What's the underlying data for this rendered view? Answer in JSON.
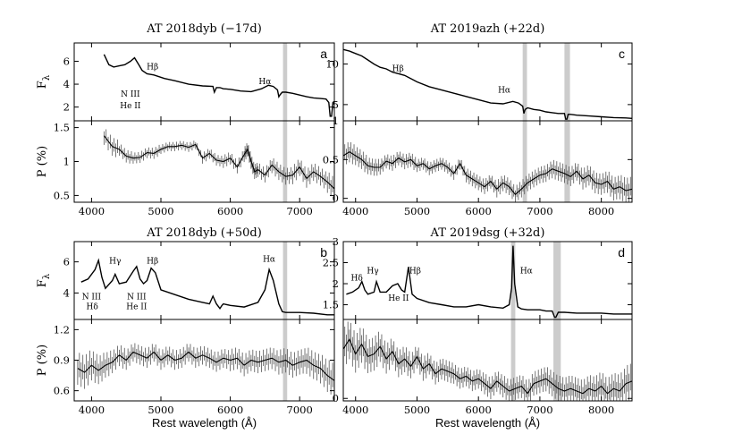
{
  "figure": {
    "x_label": "Rest wavelength (Å)"
  },
  "chart_data": [
    {
      "id": "a",
      "type": "line",
      "title": "AT 2018dyb   (−17d)",
      "letter": "a",
      "xlim": [
        3750,
        7500
      ],
      "xticks": [
        4000,
        5000,
        6000,
        7000
      ],
      "flux": {
        "ylabel": "F_λ",
        "ylim": [
          0.8,
          7.6
        ],
        "yticks": [
          2,
          4,
          6
        ],
        "x": [
          4180,
          4250,
          4320,
          4400,
          4480,
          4560,
          4620,
          4680,
          4730,
          4800,
          4900,
          5050,
          5200,
          5400,
          5600,
          5750,
          5770,
          5800,
          5850,
          5900,
          6000,
          6150,
          6300,
          6450,
          6550,
          6620,
          6680,
          6700,
          6720,
          6750,
          6800,
          6900,
          7000,
          7100,
          7200,
          7300,
          7380,
          7420,
          7440,
          7460,
          7480,
          7500
        ],
        "y": [
          6.6,
          5.7,
          5.5,
          5.6,
          5.7,
          6.0,
          6.3,
          5.7,
          5.2,
          4.9,
          4.8,
          4.5,
          4.3,
          4.0,
          3.85,
          3.8,
          3.3,
          3.7,
          3.7,
          3.6,
          3.55,
          3.4,
          3.35,
          3.6,
          3.9,
          3.8,
          3.5,
          2.9,
          3.1,
          3.3,
          3.3,
          3.2,
          3.05,
          2.9,
          2.8,
          2.75,
          2.7,
          2.4,
          1.2,
          1.2,
          2.4,
          2.5
        ],
        "annotations": [
          {
            "text": "Hβ",
            "x": 4880,
            "y": 5.3
          },
          {
            "text": "N III",
            "x": 4560,
            "y": 2.9
          },
          {
            "text": "He II",
            "x": 4560,
            "y": 1.9
          },
          {
            "text": "Hα",
            "x": 6500,
            "y": 4.0
          }
        ]
      },
      "polarization": {
        "ylabel": "P (%)",
        "ylim": [
          0.4,
          1.6
        ],
        "yticks": [
          0.5,
          1.0,
          1.5
        ],
        "x": [
          4180,
          4300,
          4400,
          4500,
          4600,
          4700,
          4800,
          4900,
          5000,
          5100,
          5200,
          5300,
          5400,
          5500,
          5600,
          5700,
          5800,
          5900,
          6000,
          6100,
          6200,
          6250,
          6300,
          6350,
          6400,
          6500,
          6600,
          6700,
          6800,
          6900,
          7000,
          7100,
          7200,
          7300,
          7400,
          7500
        ],
        "y": [
          1.38,
          1.22,
          1.18,
          1.08,
          1.05,
          1.06,
          1.13,
          1.12,
          1.18,
          1.22,
          1.22,
          1.24,
          1.21,
          1.25,
          1.05,
          1.12,
          1.02,
          1.0,
          1.05,
          0.92,
          1.1,
          1.18,
          1.0,
          0.85,
          0.88,
          0.8,
          0.95,
          0.85,
          0.78,
          0.8,
          0.92,
          0.75,
          0.85,
          0.78,
          0.7,
          0.6
        ],
        "err": [
          0.1,
          0.1,
          0.07,
          0.07,
          0.06,
          0.06,
          0.06,
          0.06,
          0.05,
          0.05,
          0.05,
          0.05,
          0.05,
          0.05,
          0.06,
          0.06,
          0.06,
          0.07,
          0.07,
          0.07,
          0.08,
          0.08,
          0.08,
          0.08,
          0.08,
          0.08,
          0.09,
          0.09,
          0.09,
          0.1,
          0.1,
          0.1,
          0.1,
          0.1,
          0.12,
          0.14
        ]
      },
      "band": [
        6760,
        6820
      ]
    },
    {
      "id": "c",
      "type": "line",
      "title": "AT 2019azh   (+22d)",
      "letter": "c",
      "xlim": [
        3800,
        8500
      ],
      "xticks": [
        4000,
        5000,
        6000,
        7000,
        8000
      ],
      "flux": {
        "ylabel": "",
        "ylim": [
          3.0,
          12.6
        ],
        "yticks": [
          5,
          10
        ],
        "x": [
          3800,
          3900,
          4000,
          4100,
          4200,
          4300,
          4400,
          4500,
          4600,
          4700,
          4800,
          4900,
          5000,
          5200,
          5400,
          5600,
          5800,
          6000,
          6200,
          6400,
          6560,
          6650,
          6720,
          6740,
          6760,
          6800,
          6900,
          7000,
          7100,
          7200,
          7300,
          7400,
          7420,
          7440,
          7460,
          7500,
          7600,
          7800,
          8000,
          8200,
          8400,
          8500
        ],
        "y": [
          11.8,
          11.6,
          11.3,
          11.0,
          10.5,
          10.0,
          9.6,
          9.4,
          9.0,
          8.8,
          8.6,
          8.2,
          7.8,
          7.2,
          6.8,
          6.4,
          6.0,
          5.6,
          5.2,
          5.1,
          5.4,
          5.2,
          4.8,
          3.9,
          4.4,
          4.6,
          4.4,
          4.3,
          4.1,
          4.0,
          3.9,
          3.9,
          3.2,
          3.2,
          3.8,
          3.8,
          3.7,
          3.6,
          3.5,
          3.4,
          3.35,
          3.3
        ],
        "annotations": [
          {
            "text": "Hβ",
            "x": 4690,
            "y": 9.1
          },
          {
            "text": "Hα",
            "x": 6420,
            "y": 6.5
          }
        ]
      },
      "polarization": {
        "ylabel": "",
        "ylim": [
          -0.05,
          1.0
        ],
        "yticks": [
          0.0,
          0.5,
          1.0
        ],
        "x": [
          3800,
          3900,
          4000,
          4100,
          4200,
          4300,
          4400,
          4500,
          4600,
          4700,
          4800,
          4900,
          5000,
          5100,
          5200,
          5300,
          5400,
          5500,
          5600,
          5700,
          5800,
          5900,
          6000,
          6100,
          6200,
          6300,
          6400,
          6500,
          6600,
          6700,
          6800,
          6900,
          7000,
          7100,
          7200,
          7300,
          7400,
          7500,
          7600,
          7700,
          7800,
          7900,
          8000,
          8100,
          8200,
          8300,
          8400,
          8500
        ],
        "y": [
          0.55,
          0.6,
          0.55,
          0.5,
          0.42,
          0.4,
          0.4,
          0.48,
          0.45,
          0.52,
          0.47,
          0.5,
          0.42,
          0.45,
          0.38,
          0.42,
          0.45,
          0.4,
          0.32,
          0.45,
          0.3,
          0.25,
          0.2,
          0.15,
          0.22,
          0.12,
          0.2,
          0.15,
          0.05,
          0.12,
          0.2,
          0.25,
          0.3,
          0.32,
          0.38,
          0.35,
          0.32,
          0.28,
          0.35,
          0.25,
          0.3,
          0.2,
          0.18,
          0.22,
          0.12,
          0.15,
          0.1,
          0.12
        ],
        "err": [
          0.1,
          0.1,
          0.09,
          0.09,
          0.08,
          0.08,
          0.07,
          0.07,
          0.07,
          0.07,
          0.07,
          0.07,
          0.06,
          0.06,
          0.06,
          0.06,
          0.06,
          0.06,
          0.06,
          0.06,
          0.07,
          0.07,
          0.07,
          0.07,
          0.07,
          0.08,
          0.08,
          0.08,
          0.08,
          0.08,
          0.08,
          0.08,
          0.08,
          0.08,
          0.09,
          0.09,
          0.09,
          0.09,
          0.09,
          0.1,
          0.1,
          0.1,
          0.1,
          0.11,
          0.11,
          0.12,
          0.12,
          0.13
        ]
      },
      "band": [
        6720,
        6790
      ],
      "band2": [
        7400,
        7490
      ]
    },
    {
      "id": "b",
      "type": "line",
      "title": "AT 2018dyb   (+50d)",
      "letter": "b",
      "xlim": [
        3750,
        7500
      ],
      "xticks": [
        4000,
        5000,
        6000,
        7000
      ],
      "flux": {
        "ylabel": "F_λ",
        "ylim": [
          2.3,
          7.3
        ],
        "yticks": [
          4,
          6
        ],
        "x": [
          3850,
          3950,
          4050,
          4100,
          4150,
          4200,
          4300,
          4340,
          4400,
          4500,
          4600,
          4650,
          4700,
          4750,
          4800,
          4860,
          4920,
          5000,
          5200,
          5400,
          5600,
          5700,
          5750,
          5800,
          5850,
          5880,
          5900,
          6000,
          6200,
          6400,
          6500,
          6560,
          6620,
          6700,
          6750,
          6800,
          7000,
          7200,
          7400,
          7500
        ],
        "y": [
          4.7,
          4.9,
          5.5,
          6.1,
          5.0,
          4.3,
          4.8,
          5.2,
          4.6,
          4.7,
          5.4,
          5.7,
          4.9,
          4.6,
          4.8,
          5.6,
          5.3,
          4.2,
          3.9,
          3.6,
          3.4,
          3.3,
          3.8,
          3.3,
          3.0,
          3.2,
          3.3,
          3.2,
          3.1,
          3.4,
          4.2,
          5.5,
          4.8,
          3.3,
          2.8,
          2.75,
          2.75,
          2.7,
          2.6,
          2.6
        ],
        "annotations": [
          {
            "text": "Hγ",
            "x": 4340,
            "y": 5.9
          },
          {
            "text": "Hβ",
            "x": 4880,
            "y": 5.9
          },
          {
            "text": "Hα",
            "x": 6560,
            "y": 6.0
          },
          {
            "text": "N III",
            "x": 4000,
            "y": 3.6
          },
          {
            "text": "Hδ",
            "x": 4010,
            "y": 2.95
          },
          {
            "text": "N III",
            "x": 4650,
            "y": 3.6
          },
          {
            "text": "He II",
            "x": 4650,
            "y": 2.95
          }
        ]
      },
      "polarization": {
        "ylabel": "P (%)",
        "ylim": [
          0.5,
          1.3
        ],
        "yticks": [
          0.6,
          0.9,
          1.2
        ],
        "x": [
          3800,
          3900,
          4000,
          4100,
          4200,
          4300,
          4400,
          4500,
          4600,
          4700,
          4800,
          4900,
          5000,
          5100,
          5200,
          5300,
          5400,
          5500,
          5600,
          5700,
          5800,
          5900,
          6000,
          6100,
          6200,
          6300,
          6400,
          6500,
          6600,
          6700,
          6800,
          6900,
          7000,
          7100,
          7200,
          7300,
          7400,
          7500
        ],
        "y": [
          0.82,
          0.78,
          0.85,
          0.8,
          0.85,
          0.88,
          0.95,
          0.9,
          0.98,
          0.95,
          0.92,
          0.98,
          0.9,
          0.95,
          0.9,
          0.92,
          0.98,
          0.92,
          0.95,
          0.92,
          0.88,
          0.92,
          0.9,
          0.92,
          0.85,
          0.9,
          0.88,
          0.9,
          0.92,
          0.88,
          0.9,
          0.85,
          0.88,
          0.9,
          0.85,
          0.82,
          0.75,
          0.7
        ],
        "err": [
          0.12,
          0.12,
          0.11,
          0.1,
          0.09,
          0.08,
          0.08,
          0.07,
          0.07,
          0.07,
          0.07,
          0.07,
          0.07,
          0.07,
          0.07,
          0.07,
          0.07,
          0.07,
          0.07,
          0.07,
          0.07,
          0.07,
          0.08,
          0.08,
          0.08,
          0.08,
          0.08,
          0.08,
          0.08,
          0.09,
          0.09,
          0.09,
          0.09,
          0.1,
          0.1,
          0.11,
          0.12,
          0.13
        ]
      },
      "band": [
        6760,
        6820
      ]
    },
    {
      "id": "d",
      "type": "line",
      "title": "AT 2019dsg   (+32d)",
      "letter": "d",
      "xlim": [
        3800,
        8500
      ],
      "xticks": [
        4000,
        5000,
        6000,
        7000,
        8000
      ],
      "flux": {
        "ylabel": "",
        "ylim": [
          1.15,
          3.0
        ],
        "yticks": [
          1.5,
          2.0,
          2.5,
          3.0
        ],
        "x": [
          3850,
          3950,
          4000,
          4050,
          4102,
          4150,
          4200,
          4300,
          4340,
          4400,
          4500,
          4600,
          4686,
          4750,
          4800,
          4861,
          4920,
          5000,
          5200,
          5400,
          5600,
          5800,
          6000,
          6200,
          6400,
          6500,
          6540,
          6563,
          6590,
          6640,
          6700,
          6800,
          7000,
          7100,
          7200,
          7240,
          7260,
          7300,
          7400,
          7600,
          7800,
          8000,
          8200,
          8400,
          8500
        ],
        "y": [
          1.75,
          1.8,
          1.85,
          1.9,
          2.05,
          1.85,
          1.75,
          1.8,
          2.05,
          1.8,
          1.8,
          1.95,
          2.0,
          1.85,
          1.8,
          2.4,
          1.75,
          1.65,
          1.55,
          1.5,
          1.45,
          1.45,
          1.5,
          1.45,
          1.42,
          1.5,
          1.9,
          2.9,
          2.0,
          1.45,
          1.4,
          1.38,
          1.38,
          1.35,
          1.35,
          1.2,
          1.2,
          1.32,
          1.32,
          1.3,
          1.3,
          1.3,
          1.28,
          1.28,
          1.28
        ],
        "annotations": [
          {
            "text": "Hδ",
            "x": 4020,
            "y": 2.08
          },
          {
            "text": "Hγ",
            "x": 4280,
            "y": 2.25
          },
          {
            "text": "Hβ",
            "x": 4970,
            "y": 2.25
          },
          {
            "text": "He II",
            "x": 4700,
            "y": 1.6
          },
          {
            "text": "Hα",
            "x": 6780,
            "y": 2.25
          }
        ]
      },
      "polarization": {
        "ylabel": "",
        "ylim": [
          -0.05,
          1.6
        ],
        "yticks": [
          0.0
        ],
        "x": [
          3800,
          3900,
          4000,
          4100,
          4200,
          4300,
          4400,
          4500,
          4600,
          4700,
          4800,
          4900,
          5000,
          5100,
          5200,
          5300,
          5400,
          5500,
          5600,
          5700,
          5800,
          5900,
          6000,
          6100,
          6200,
          6300,
          6400,
          6500,
          6600,
          6700,
          6800,
          6900,
          7000,
          7100,
          7200,
          7300,
          7400,
          7500,
          7600,
          7700,
          7800,
          7900,
          8000,
          8100,
          8200,
          8300,
          8400,
          8500
        ],
        "y": [
          1.0,
          1.2,
          0.9,
          1.1,
          0.85,
          0.9,
          1.05,
          0.8,
          0.95,
          0.7,
          0.8,
          0.65,
          0.85,
          0.6,
          0.7,
          0.5,
          0.6,
          0.55,
          0.5,
          0.4,
          0.45,
          0.35,
          0.4,
          0.3,
          0.2,
          0.35,
          0.25,
          0.15,
          0.2,
          0.25,
          0.1,
          0.3,
          0.35,
          0.4,
          0.3,
          0.2,
          0.15,
          0.2,
          0.15,
          0.1,
          0.2,
          0.15,
          0.25,
          0.1,
          0.2,
          0.15,
          0.3,
          0.35
        ],
        "err": [
          0.3,
          0.3,
          0.28,
          0.28,
          0.25,
          0.25,
          0.23,
          0.22,
          0.2,
          0.2,
          0.2,
          0.18,
          0.18,
          0.18,
          0.16,
          0.16,
          0.16,
          0.16,
          0.15,
          0.15,
          0.15,
          0.15,
          0.15,
          0.16,
          0.16,
          0.16,
          0.17,
          0.17,
          0.17,
          0.18,
          0.18,
          0.18,
          0.18,
          0.19,
          0.19,
          0.2,
          0.2,
          0.2,
          0.2,
          0.2,
          0.21,
          0.22,
          0.22,
          0.23,
          0.24,
          0.25,
          0.27,
          0.3
        ]
      },
      "band": [
        7220,
        7340
      ],
      "band2": [
        6530,
        6600
      ]
    }
  ]
}
